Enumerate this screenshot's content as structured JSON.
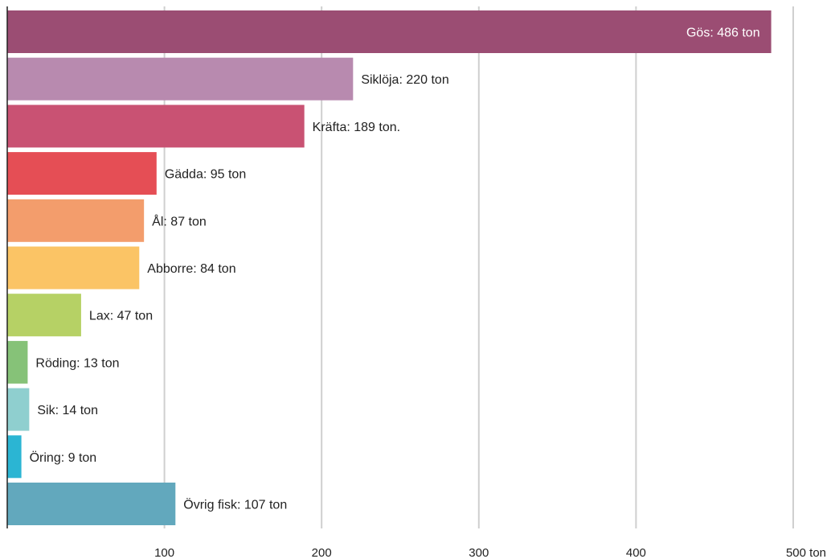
{
  "chart_data": {
    "type": "bar",
    "orientation": "horizontal",
    "unit": "ton",
    "categories": [
      "Gös",
      "Siklöja",
      "Kräfta",
      "Gädda",
      "Ål",
      "Abborre",
      "Lax",
      "Röding",
      "Sik",
      "Öring",
      "Övrig fisk"
    ],
    "values": [
      486,
      220,
      189,
      95,
      87,
      84,
      47,
      13,
      14,
      9,
      107
    ],
    "bar_labels": [
      "Gös: 486 ton",
      "Siklöja: 220 ton",
      "Kräfta: 189 ton.",
      "Gädda: 95 ton",
      "Ål: 87 ton",
      "Abborre: 84 ton",
      "Lax: 47 ton",
      "Röding: 13 ton",
      "Sik: 14 ton",
      "Öring: 9 ton",
      "Övrig fisk: 107 ton"
    ],
    "colors": [
      "#9b4d73",
      "#b88aaf",
      "#c95273",
      "#e54e55",
      "#f39d6c",
      "#fbc465",
      "#b6d165",
      "#86c278",
      "#8fcfcf",
      "#2bb5d3",
      "#62a8bd"
    ],
    "label_inside": [
      true,
      false,
      false,
      false,
      false,
      false,
      false,
      false,
      false,
      false,
      false
    ],
    "xlim": [
      0,
      500
    ],
    "xticks": [
      100,
      200,
      300,
      400,
      500
    ],
    "xtick_labels": [
      "100",
      "200",
      "300",
      "400",
      "500 ton"
    ],
    "grid": true,
    "title": "",
    "xlabel": "",
    "ylabel": ""
  }
}
